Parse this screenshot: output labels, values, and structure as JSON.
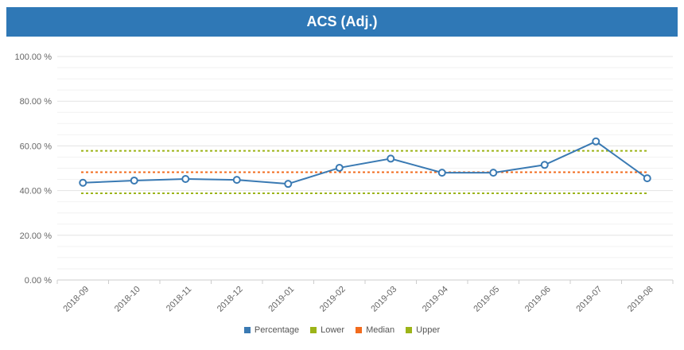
{
  "chart_data": {
    "type": "line",
    "title": "ACS (Adj.)",
    "xlabel": "",
    "ylabel": "",
    "categories": [
      "2018-09",
      "2018-10",
      "2018-11",
      "2018-12",
      "2019-01",
      "2019-02",
      "2019-03",
      "2019-04",
      "2019-05",
      "2019-06",
      "2019-07",
      "2019-08"
    ],
    "ylim": [
      0,
      100
    ],
    "y_ticks": [
      0,
      20,
      40,
      60,
      80,
      100
    ],
    "y_tick_labels": [
      "0.00 %",
      "20.00 %",
      "40.00 %",
      "60.00 %",
      "80.00 %",
      "100.00 %"
    ],
    "series": [
      {
        "name": "Percentage",
        "color": "#3a7ab3",
        "style": "solid-markers",
        "values": [
          43.5,
          44.5,
          45.2,
          44.8,
          43.0,
          50.2,
          54.3,
          48.0,
          48.0,
          51.5,
          62.0,
          45.5
        ]
      },
      {
        "name": "Lower",
        "color": "#9cb418",
        "style": "dotted",
        "values": [
          38.8,
          38.8,
          38.8,
          38.8,
          38.8,
          38.8,
          38.8,
          38.8,
          38.8,
          38.8,
          38.8,
          38.8
        ]
      },
      {
        "name": "Median",
        "color": "#f26b1d",
        "style": "dotted",
        "values": [
          48.2,
          48.2,
          48.2,
          48.2,
          48.2,
          48.2,
          48.2,
          48.2,
          48.2,
          48.2,
          48.2,
          48.2
        ]
      },
      {
        "name": "Upper",
        "color": "#9cb418",
        "style": "dotted",
        "values": [
          57.8,
          57.8,
          57.8,
          57.8,
          57.8,
          57.8,
          57.8,
          57.8,
          57.8,
          57.8,
          57.8,
          57.8
        ]
      }
    ],
    "grid": true,
    "legend_position": "bottom-center"
  },
  "colors": {
    "title_bar": "#2f78b6",
    "title_text": "#ffffff",
    "grid": "#e6e6e6",
    "axis_text": "#666666"
  }
}
